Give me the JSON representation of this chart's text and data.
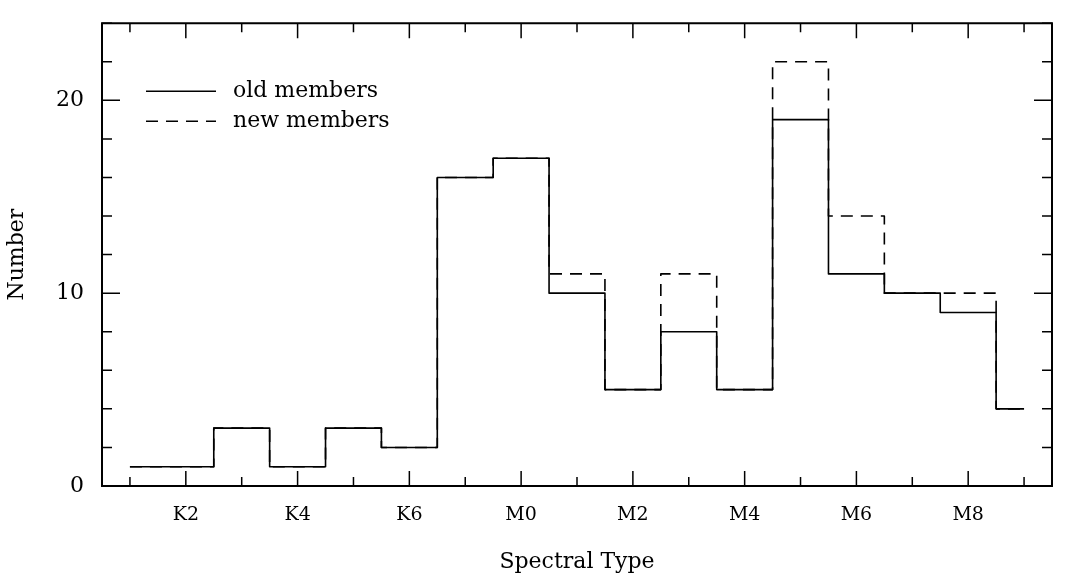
{
  "chart_data": {
    "type": "step",
    "xlabel": "Spectral Type",
    "ylabel": "Number",
    "categories": [
      null,
      "K2",
      null,
      "K4",
      null,
      "K6",
      null,
      "M0",
      null,
      "M2",
      null,
      "M4",
      null,
      "M6",
      null,
      "M8",
      null
    ],
    "series": [
      {
        "name": "old members",
        "color": "#000000",
        "line_style": "solid",
        "values": [
          1,
          1,
          3,
          1,
          3,
          2,
          16,
          17,
          10,
          5,
          8,
          5,
          19,
          11,
          10,
          9,
          4
        ]
      },
      {
        "name": "new members",
        "color": "#000000",
        "line_style": "dashed",
        "values": [
          1,
          1,
          3,
          1,
          3,
          2,
          16,
          17,
          11,
          5,
          11,
          5,
          22,
          14,
          10,
          10,
          4
        ]
      }
    ],
    "ylim": [
      0,
      24
    ],
    "yticks": [
      0,
      {
        "value": 2,
        "label": null
      },
      {
        "value": 4,
        "label": null
      },
      {
        "value": 6,
        "label": null
      },
      {
        "value": 8,
        "label": null
      },
      10,
      {
        "value": 12,
        "label": null
      },
      {
        "value": 14,
        "label": null
      },
      {
        "value": 16,
        "label": null
      },
      {
        "value": 18,
        "label": null
      },
      20,
      {
        "value": 22,
        "label": null
      },
      {
        "value": 24,
        "label": null
      }
    ],
    "legend": "top left",
    "grid": false
  }
}
